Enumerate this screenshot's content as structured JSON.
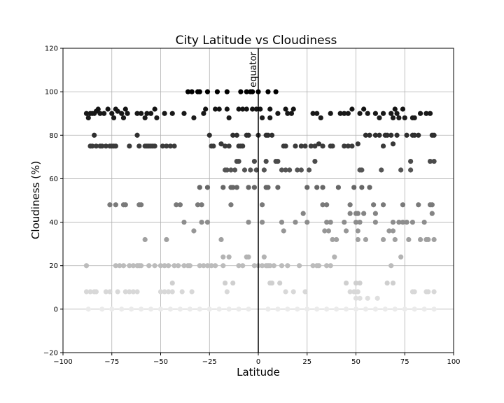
{
  "chart_data": {
    "type": "scatter",
    "title": "City Latitude vs Cloudiness",
    "xlabel": "Latitude",
    "ylabel": "Cloudiness (%)",
    "xlim": [
      -100,
      100
    ],
    "ylim": [
      -20,
      120
    ],
    "xticks": [
      -100,
      -75,
      -50,
      -25,
      0,
      25,
      50,
      75,
      100
    ],
    "yticks": [
      -20,
      0,
      20,
      40,
      60,
      80,
      100,
      120
    ],
    "grid": true,
    "color_scale": "grayscale by cloudiness (darker = cloudier)",
    "annotations": [
      {
        "text": "equator",
        "x": 0
      }
    ],
    "vline_x": 0,
    "points": [
      [
        -88,
        90
      ],
      [
        -87,
        88
      ],
      [
        -86,
        90
      ],
      [
        -85,
        90
      ],
      [
        -84,
        90
      ],
      [
        -83,
        91
      ],
      [
        -82,
        92
      ],
      [
        -81,
        90
      ],
      [
        -79,
        90
      ],
      [
        -77,
        92
      ],
      [
        -75,
        90
      ],
      [
        -74,
        88
      ],
      [
        -73,
        92
      ],
      [
        -72,
        91
      ],
      [
        -70,
        90
      ],
      [
        -69,
        88
      ],
      [
        -68,
        92
      ],
      [
        -67,
        90
      ],
      [
        -62,
        90
      ],
      [
        -60,
        90
      ],
      [
        -58,
        88
      ],
      [
        -57,
        90
      ],
      [
        -55,
        90
      ],
      [
        -53,
        92
      ],
      [
        -52,
        88
      ],
      [
        -48,
        90
      ],
      [
        -44,
        90
      ],
      [
        -38,
        90
      ],
      [
        -33,
        88
      ],
      [
        -28,
        90
      ],
      [
        -27,
        92
      ],
      [
        -22,
        92
      ],
      [
        -20,
        92
      ],
      [
        -16,
        92
      ],
      [
        -15,
        88
      ],
      [
        -10,
        92
      ],
      [
        -8,
        92
      ],
      [
        -6,
        92
      ],
      [
        -3,
        92
      ],
      [
        -1,
        92
      ],
      [
        1,
        92
      ],
      [
        2,
        88
      ],
      [
        6,
        92
      ],
      [
        6,
        88
      ],
      [
        10,
        90
      ],
      [
        14,
        92
      ],
      [
        15,
        90
      ],
      [
        17,
        90
      ],
      [
        18,
        92
      ],
      [
        28,
        90
      ],
      [
        30,
        90
      ],
      [
        32,
        88
      ],
      [
        37,
        90
      ],
      [
        42,
        90
      ],
      [
        44,
        90
      ],
      [
        46,
        90
      ],
      [
        48,
        92
      ],
      [
        52,
        90
      ],
      [
        54,
        92
      ],
      [
        56,
        90
      ],
      [
        60,
        90
      ],
      [
        62,
        88
      ],
      [
        64,
        90
      ],
      [
        68,
        90
      ],
      [
        69,
        88
      ],
      [
        70,
        92
      ],
      [
        71,
        90
      ],
      [
        72,
        88
      ],
      [
        74,
        92
      ],
      [
        75,
        88
      ],
      [
        79,
        88
      ],
      [
        80,
        88
      ],
      [
        83,
        90
      ],
      [
        86,
        90
      ],
      [
        88,
        90
      ],
      [
        -36,
        100
      ],
      [
        -34,
        100
      ],
      [
        -31,
        100
      ],
      [
        -30,
        100
      ],
      [
        -26,
        100
      ],
      [
        -21,
        100
      ],
      [
        -16,
        100
      ],
      [
        -9,
        100
      ],
      [
        -6,
        100
      ],
      [
        -4,
        100
      ],
      [
        -3,
        100
      ],
      [
        0,
        100
      ],
      [
        5,
        100
      ],
      [
        9,
        100
      ],
      [
        -86,
        75
      ],
      [
        -85,
        75
      ],
      [
        -84,
        80
      ],
      [
        -83,
        75
      ],
      [
        -81,
        75
      ],
      [
        -80,
        75
      ],
      [
        -78,
        75
      ],
      [
        -76,
        75
      ],
      [
        -75,
        75
      ],
      [
        -74,
        75
      ],
      [
        -73,
        75
      ],
      [
        -66,
        75
      ],
      [
        -62,
        80
      ],
      [
        -61,
        75
      ],
      [
        -58,
        75
      ],
      [
        -57,
        75
      ],
      [
        -56,
        75
      ],
      [
        -55,
        75
      ],
      [
        -54,
        75
      ],
      [
        -53,
        75
      ],
      [
        -49,
        75
      ],
      [
        -47,
        75
      ],
      [
        -45,
        75
      ],
      [
        -43,
        75
      ],
      [
        -25,
        80
      ],
      [
        -24,
        75
      ],
      [
        -23,
        75
      ],
      [
        -19,
        76
      ],
      [
        -17,
        75
      ],
      [
        -15,
        75
      ],
      [
        -13,
        80
      ],
      [
        -11,
        80
      ],
      [
        -10,
        75
      ],
      [
        -9,
        75
      ],
      [
        -8,
        75
      ],
      [
        -6,
        80
      ],
      [
        -5,
        80
      ],
      [
        0,
        80
      ],
      [
        4,
        80
      ],
      [
        5,
        80
      ],
      [
        7,
        80
      ],
      [
        13,
        75
      ],
      [
        14,
        75
      ],
      [
        19,
        75
      ],
      [
        22,
        75
      ],
      [
        24,
        75
      ],
      [
        27,
        75
      ],
      [
        29,
        75
      ],
      [
        31,
        76
      ],
      [
        33,
        75
      ],
      [
        37,
        75
      ],
      [
        38,
        75
      ],
      [
        44,
        75
      ],
      [
        46,
        75
      ],
      [
        48,
        75
      ],
      [
        51,
        76
      ],
      [
        55,
        80
      ],
      [
        57,
        80
      ],
      [
        60,
        80
      ],
      [
        62,
        80
      ],
      [
        64,
        75
      ],
      [
        65,
        80
      ],
      [
        66,
        80
      ],
      [
        68,
        80
      ],
      [
        69,
        76
      ],
      [
        71,
        80
      ],
      [
        76,
        80
      ],
      [
        79,
        80
      ],
      [
        80,
        80
      ],
      [
        82,
        80
      ],
      [
        89,
        80
      ],
      [
        90,
        80
      ],
      [
        -17,
        64
      ],
      [
        -16,
        64
      ],
      [
        -14,
        64
      ],
      [
        -12,
        64
      ],
      [
        -11,
        68
      ],
      [
        -10,
        68
      ],
      [
        -7,
        64
      ],
      [
        -4,
        64
      ],
      [
        -2,
        68
      ],
      [
        -1,
        64
      ],
      [
        3,
        64
      ],
      [
        4,
        68
      ],
      [
        9,
        68
      ],
      [
        10,
        68
      ],
      [
        12,
        64
      ],
      [
        14,
        64
      ],
      [
        16,
        64
      ],
      [
        20,
        64
      ],
      [
        22,
        64
      ],
      [
        26,
        64
      ],
      [
        29,
        68
      ],
      [
        52,
        64
      ],
      [
        53,
        64
      ],
      [
        63,
        64
      ],
      [
        73,
        64
      ],
      [
        78,
        64
      ],
      [
        78,
        68
      ],
      [
        88,
        68
      ],
      [
        90,
        68
      ],
      [
        -18,
        56
      ],
      [
        -14,
        56
      ],
      [
        -13,
        56
      ],
      [
        -11,
        56
      ],
      [
        -5,
        56
      ],
      [
        -2,
        56
      ],
      [
        4,
        56
      ],
      [
        5,
        56
      ],
      [
        10,
        56
      ],
      [
        25,
        56
      ],
      [
        30,
        56
      ],
      [
        33,
        56
      ],
      [
        41,
        56
      ],
      [
        49,
        56
      ],
      [
        53,
        56
      ],
      [
        57,
        56
      ],
      [
        -30,
        56
      ],
      [
        -26,
        56
      ],
      [
        -76,
        48
      ],
      [
        -73,
        48
      ],
      [
        -69,
        48
      ],
      [
        -68,
        48
      ],
      [
        -61,
        48
      ],
      [
        -60,
        48
      ],
      [
        -42,
        48
      ],
      [
        -40,
        48
      ],
      [
        -31,
        48
      ],
      [
        -29,
        48
      ],
      [
        -14,
        48
      ],
      [
        2,
        48
      ],
      [
        33,
        48
      ],
      [
        35,
        48
      ],
      [
        47,
        48
      ],
      [
        59,
        48
      ],
      [
        64,
        48
      ],
      [
        74,
        48
      ],
      [
        82,
        48
      ],
      [
        88,
        48
      ],
      [
        89,
        48
      ],
      [
        -38,
        40
      ],
      [
        -29,
        40
      ],
      [
        -26,
        40
      ],
      [
        -5,
        40
      ],
      [
        2,
        40
      ],
      [
        12,
        40
      ],
      [
        19,
        40
      ],
      [
        25,
        40
      ],
      [
        35,
        40
      ],
      [
        37,
        40
      ],
      [
        44,
        40
      ],
      [
        50,
        40
      ],
      [
        52,
        40
      ],
      [
        60,
        40
      ],
      [
        69,
        40
      ],
      [
        72,
        40
      ],
      [
        74,
        40
      ],
      [
        76,
        40
      ],
      [
        79,
        40
      ],
      [
        85,
        40
      ],
      [
        89,
        44
      ],
      [
        23,
        44
      ],
      [
        47,
        44
      ],
      [
        50,
        44
      ],
      [
        51,
        44
      ],
      [
        54,
        44
      ],
      [
        60,
        44
      ],
      [
        -58,
        32
      ],
      [
        -47,
        32
      ],
      [
        -19,
        32
      ],
      [
        38,
        32
      ],
      [
        40,
        32
      ],
      [
        51,
        32
      ],
      [
        55,
        32
      ],
      [
        64,
        32
      ],
      [
        70,
        32
      ],
      [
        77,
        32
      ],
      [
        83,
        32
      ],
      [
        86,
        32
      ],
      [
        87,
        32
      ],
      [
        90,
        32
      ],
      [
        -33,
        36
      ],
      [
        13,
        36
      ],
      [
        34,
        36
      ],
      [
        36,
        36
      ],
      [
        45,
        36
      ],
      [
        51,
        36
      ],
      [
        67,
        36
      ],
      [
        69,
        36
      ],
      [
        -88,
        20
      ],
      [
        -73,
        20
      ],
      [
        -71,
        20
      ],
      [
        -69,
        20
      ],
      [
        -66,
        20
      ],
      [
        -64,
        20
      ],
      [
        -62,
        20
      ],
      [
        -61,
        20
      ],
      [
        -60,
        20
      ],
      [
        -56,
        20
      ],
      [
        -53,
        20
      ],
      [
        -50,
        20
      ],
      [
        -48,
        20
      ],
      [
        -46,
        20
      ],
      [
        -43,
        20
      ],
      [
        -41,
        20
      ],
      [
        -38,
        20
      ],
      [
        -36,
        20
      ],
      [
        -35,
        20
      ],
      [
        -30,
        20
      ],
      [
        -28,
        20
      ],
      [
        -26,
        20
      ],
      [
        -24,
        20
      ],
      [
        -22,
        20
      ],
      [
        -18,
        20
      ],
      [
        -10,
        20
      ],
      [
        -8,
        20
      ],
      [
        -2,
        20
      ],
      [
        0,
        20
      ],
      [
        2,
        20
      ],
      [
        4,
        20
      ],
      [
        5,
        20
      ],
      [
        6,
        20
      ],
      [
        8,
        20
      ],
      [
        12,
        20
      ],
      [
        15,
        20
      ],
      [
        21,
        20
      ],
      [
        28,
        20
      ],
      [
        30,
        20
      ],
      [
        31,
        20
      ],
      [
        35,
        20
      ],
      [
        37,
        20
      ],
      [
        39,
        24
      ],
      [
        -18,
        24
      ],
      [
        -6,
        24
      ],
      [
        -5,
        24
      ],
      [
        3,
        24
      ],
      [
        73,
        24
      ],
      [
        68,
        20
      ],
      [
        -15,
        24
      ],
      [
        -44,
        12
      ],
      [
        -17,
        12
      ],
      [
        -13,
        12
      ],
      [
        6,
        12
      ],
      [
        7,
        12
      ],
      [
        11,
        12
      ],
      [
        45,
        12
      ],
      [
        50,
        12
      ],
      [
        52,
        12
      ],
      [
        66,
        12
      ],
      [
        69,
        12
      ],
      [
        -88,
        8
      ],
      [
        -86,
        8
      ],
      [
        -84,
        8
      ],
      [
        -83,
        8
      ],
      [
        -78,
        8
      ],
      [
        -76,
        8
      ],
      [
        -72,
        8
      ],
      [
        -68,
        8
      ],
      [
        -66,
        8
      ],
      [
        -64,
        8
      ],
      [
        -62,
        8
      ],
      [
        -50,
        8
      ],
      [
        -48,
        8
      ],
      [
        -46,
        8
      ],
      [
        -44,
        8
      ],
      [
        -39,
        8
      ],
      [
        -34,
        8
      ],
      [
        -16,
        8
      ],
      [
        14,
        8
      ],
      [
        18,
        8
      ],
      [
        24,
        8
      ],
      [
        47,
        8
      ],
      [
        49,
        8
      ],
      [
        51,
        8
      ],
      [
        79,
        8
      ],
      [
        80,
        8
      ],
      [
        86,
        8
      ],
      [
        87,
        8
      ],
      [
        90,
        8
      ],
      [
        50,
        5
      ],
      [
        52,
        5
      ],
      [
        56,
        5
      ],
      [
        61,
        5
      ],
      [
        -87,
        0
      ],
      [
        -80,
        0
      ],
      [
        -75,
        0
      ],
      [
        -70,
        0
      ],
      [
        -65,
        0
      ],
      [
        -60,
        0
      ],
      [
        -55,
        0
      ],
      [
        -50,
        0
      ],
      [
        -45,
        0
      ],
      [
        -40,
        0
      ],
      [
        -35,
        0
      ],
      [
        -30,
        0
      ],
      [
        -25,
        0
      ],
      [
        -20,
        0
      ],
      [
        -15,
        0
      ],
      [
        -10,
        0
      ],
      [
        -5,
        0
      ],
      [
        5,
        0
      ],
      [
        10,
        0
      ],
      [
        15,
        0
      ],
      [
        20,
        0
      ],
      [
        25,
        0
      ],
      [
        30,
        0
      ],
      [
        35,
        0
      ],
      [
        40,
        0
      ],
      [
        45,
        0
      ],
      [
        50,
        0
      ],
      [
        55,
        0
      ],
      [
        60,
        0
      ],
      [
        65,
        0
      ],
      [
        70,
        0
      ],
      [
        75,
        0
      ],
      [
        80,
        0
      ],
      [
        85,
        0
      ],
      [
        90,
        0
      ]
    ]
  }
}
